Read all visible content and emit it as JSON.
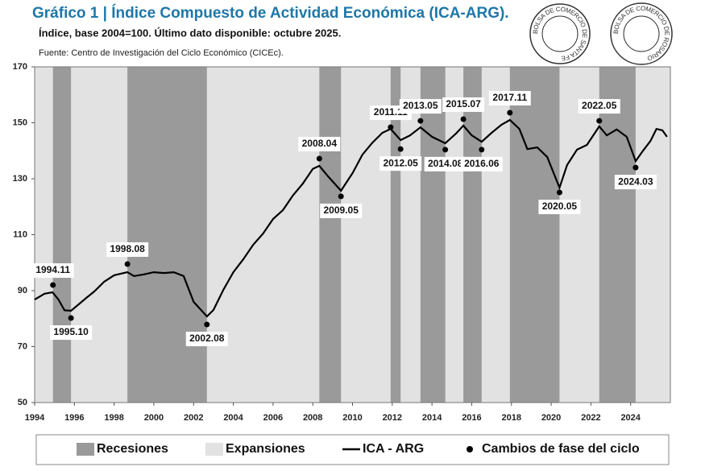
{
  "chart_data": {
    "type": "line",
    "title": "Gráfico 1 | Índice Compuesto de Actividad Económica (ICA-ARG).",
    "subtitle": "Índice, base 2004=100. Último dato disponible: octubre 2025.",
    "source": "Fuente: Centro de Investigación del Ciclo Económico (CICEc).",
    "logos": [
      "BOLSA DE COMERCIO DE SANTA FE",
      "BOLSA DE COMERCIO DE ROSARIO"
    ],
    "xlim": [
      1994,
      2026
    ],
    "xticks": [
      1994,
      1996,
      1998,
      2000,
      2002,
      2004,
      2006,
      2008,
      2010,
      2012,
      2014,
      2016,
      2018,
      2020,
      2022,
      2024
    ],
    "ylim": [
      50,
      170
    ],
    "yticks": [
      50,
      70,
      90,
      110,
      130,
      150,
      170
    ],
    "recessions": {
      "name": "Recesiones",
      "color": "#9a9a9a",
      "spans": [
        [
          1994.92,
          1995.83
        ],
        [
          1998.67,
          2002.67
        ],
        [
          2008.33,
          2009.42
        ],
        [
          2011.92,
          2012.42
        ],
        [
          2013.42,
          2014.67
        ],
        [
          2015.58,
          2016.5
        ],
        [
          2017.92,
          2020.42
        ],
        [
          2022.42,
          2024.25
        ]
      ]
    },
    "expansions": {
      "name": "Expansiones",
      "color": "#e2e2e2"
    },
    "series": [
      {
        "name": "ICA - ARG",
        "color": "#000000",
        "x": [
          1994.0,
          1994.5,
          1994.9,
          1995.2,
          1995.5,
          1995.83,
          1996.2,
          1996.6,
          1997.0,
          1997.5,
          1998.0,
          1998.67,
          1999.0,
          1999.5,
          2000.0,
          2000.5,
          2001.0,
          2001.5,
          2002.0,
          2002.67,
          2003.0,
          2003.5,
          2004.0,
          2004.5,
          2005.0,
          2005.5,
          2006.0,
          2006.5,
          2007.0,
          2007.5,
          2008.0,
          2008.33,
          2008.8,
          2009.42,
          2010.0,
          2010.5,
          2011.0,
          2011.5,
          2011.92,
          2012.42,
          2012.9,
          2013.42,
          2014.0,
          2014.67,
          2015.2,
          2015.58,
          2016.0,
          2016.5,
          2017.0,
          2017.5,
          2017.92,
          2018.4,
          2018.8,
          2019.3,
          2019.8,
          2020.42,
          2020.8,
          2021.3,
          2021.8,
          2022.42,
          2022.8,
          2023.3,
          2023.8,
          2024.25,
          2024.6,
          2025.0,
          2025.3,
          2025.6,
          2025.83
        ],
        "values": [
          86.8,
          88.9,
          89.4,
          86.8,
          83,
          82.8,
          85,
          87.4,
          89.7,
          93.2,
          95.5,
          96.6,
          95.2,
          95.8,
          96.6,
          96.3,
          96.6,
          95.2,
          86,
          80.8,
          83.1,
          90.3,
          96.6,
          101.2,
          106.4,
          110.4,
          115.6,
          118.8,
          124,
          128.3,
          133.5,
          134.6,
          130.6,
          125.7,
          132,
          138.6,
          142.9,
          146.4,
          147.8,
          143.8,
          145.5,
          148.4,
          145,
          142.7,
          146.1,
          149,
          145.5,
          143.2,
          146.4,
          149.3,
          151,
          147.8,
          140.6,
          141.2,
          137.8,
          126.8,
          134.9,
          140.4,
          142.1,
          148.7,
          145.5,
          147.6,
          145,
          136.3,
          139.8,
          143.5,
          147.8,
          147.3,
          145
        ]
      }
    ],
    "phase_changes": {
      "name": "Cambios de fase del ciclo",
      "color": "#000000",
      "x": [
        1994.92,
        1995.83,
        1998.67,
        2002.67,
        2008.33,
        2009.42,
        2011.92,
        2012.42,
        2013.42,
        2014.67,
        2015.58,
        2016.5,
        2017.92,
        2020.42,
        2022.42,
        2024.25
      ],
      "values": [
        92,
        80.2,
        99.5,
        77.9,
        137.2,
        123.7,
        148.4,
        140.6,
        150.7,
        140.4,
        151.3,
        140.4,
        153.6,
        125.1,
        150.7,
        134
      ],
      "labels": [
        "1994.11",
        "1995.10",
        "1998.08",
        "2002.08",
        "2008.04",
        "2009.05",
        "2011.11",
        "2012.05",
        "2013.05",
        "2014.08",
        "2015.07",
        "2016.06",
        "2017.11",
        "2020.05",
        "2022.05",
        "2024.03"
      ]
    }
  }
}
